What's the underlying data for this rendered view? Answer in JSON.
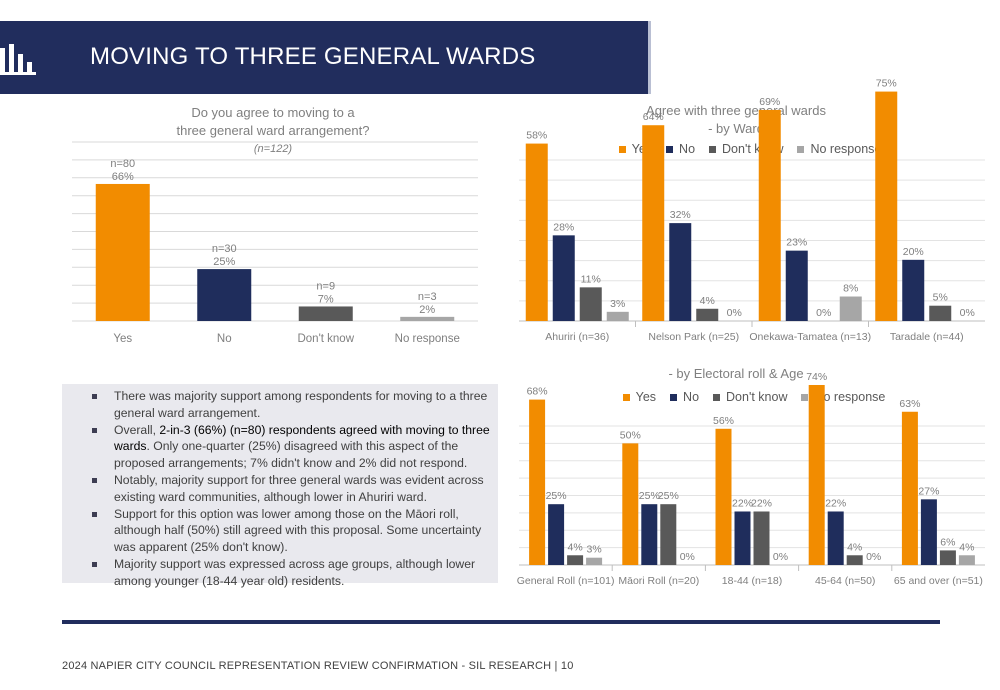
{
  "header": {
    "title": "MOVING TO THREE GENERAL WARDS",
    "icon": "bar-chart-icon"
  },
  "colors": {
    "header_bg": "#212d5d",
    "yes": "#f28c00",
    "no": "#1f2d5c",
    "dont_know": "#595959",
    "no_response": "#a6a6a6"
  },
  "charts": {
    "overall": {
      "title_line1": "Do you agree to moving to a",
      "title_line2": "three general ward arrangement?",
      "subtitle": "(n=122)"
    },
    "ward": {
      "title_line1": "Agree with three general wards",
      "title_line2": "- by Ward",
      "legend": [
        "Yes",
        "No",
        "Don't know",
        "No response"
      ]
    },
    "roll_age": {
      "title_line1": "- by Electoral roll &  Age",
      "legend": [
        "Yes",
        "No",
        "Don't know",
        "No response"
      ]
    }
  },
  "chart_data": [
    {
      "type": "bar",
      "title": "Do you agree to moving to a three general ward arrangement?",
      "subtitle": "(n=122)",
      "categories": [
        "Yes",
        "No",
        "Don't know",
        "No response"
      ],
      "values": [
        66,
        25,
        7,
        2
      ],
      "n_labels": [
        "n=80",
        "n=30",
        "n=9",
        "n=3"
      ],
      "value_labels": [
        "66%",
        "25%",
        "7%",
        "2%"
      ],
      "ylim": [
        0,
        100
      ],
      "grid": true
    },
    {
      "type": "bar",
      "title": "Agree with three general wards - by Ward",
      "categories": [
        "Ahuriri (n=36)",
        "Nelson Park (n=25)",
        "Onekawa-Tamatea (n=13)",
        "Taradale (n=44)"
      ],
      "series": [
        {
          "name": "Yes",
          "values": [
            58,
            64,
            69,
            75
          ]
        },
        {
          "name": "No",
          "values": [
            28,
            32,
            23,
            20
          ]
        },
        {
          "name": "Don't know",
          "values": [
            11,
            4,
            0,
            5
          ]
        },
        {
          "name": "No response",
          "values": [
            3,
            0,
            8,
            0
          ]
        }
      ],
      "ylim": [
        0,
        100
      ],
      "grid": true,
      "legend": "top"
    },
    {
      "type": "bar",
      "title": "- by Electoral roll &  Age",
      "categories": [
        "General Roll (n=101)",
        "Māori Roll (n=20)",
        "18-44 (n=18)",
        "45-64 (n=50)",
        "65 and over (n=51)"
      ],
      "series": [
        {
          "name": "Yes",
          "values": [
            68,
            50,
            56,
            74,
            63
          ]
        },
        {
          "name": "No",
          "values": [
            25,
            25,
            22,
            22,
            27
          ]
        },
        {
          "name": "Don't know",
          "values": [
            4,
            25,
            22,
            4,
            6
          ]
        },
        {
          "name": "No response",
          "values": [
            3,
            0,
            0,
            0,
            4
          ]
        }
      ],
      "ylim": [
        0,
        100
      ],
      "grid": true,
      "legend": "top"
    }
  ],
  "notes": {
    "b1": "There was majority support among respondents for moving to a three general ward arrangement.",
    "b2_lead": "Overall, ",
    "b2_hl": "2-in-3 (66%) (n=80) respondents agreed with moving to three wards",
    "b2_rest": ". Only one-quarter (25%) disagreed with this aspect of the proposed arrangements; 7% didn't know and 2% did not respond.",
    "b3": "Notably, majority support for three general wards was evident across existing ward communities, although lower in Ahuriri ward.",
    "b4": "Support for this option was lower among those on the Māori roll, although half (50%) still agreed with this proposal. Some uncertainty was apparent (25% don't know).",
    "b5": "Majority support was expressed across age groups, although lower among younger (18-44 year old) residents."
  },
  "footer": {
    "text": "2024 NAPIER CITY COUNCIL REPRESENTATION REVIEW CONFIRMATION - SIL RESEARCH | 10"
  }
}
